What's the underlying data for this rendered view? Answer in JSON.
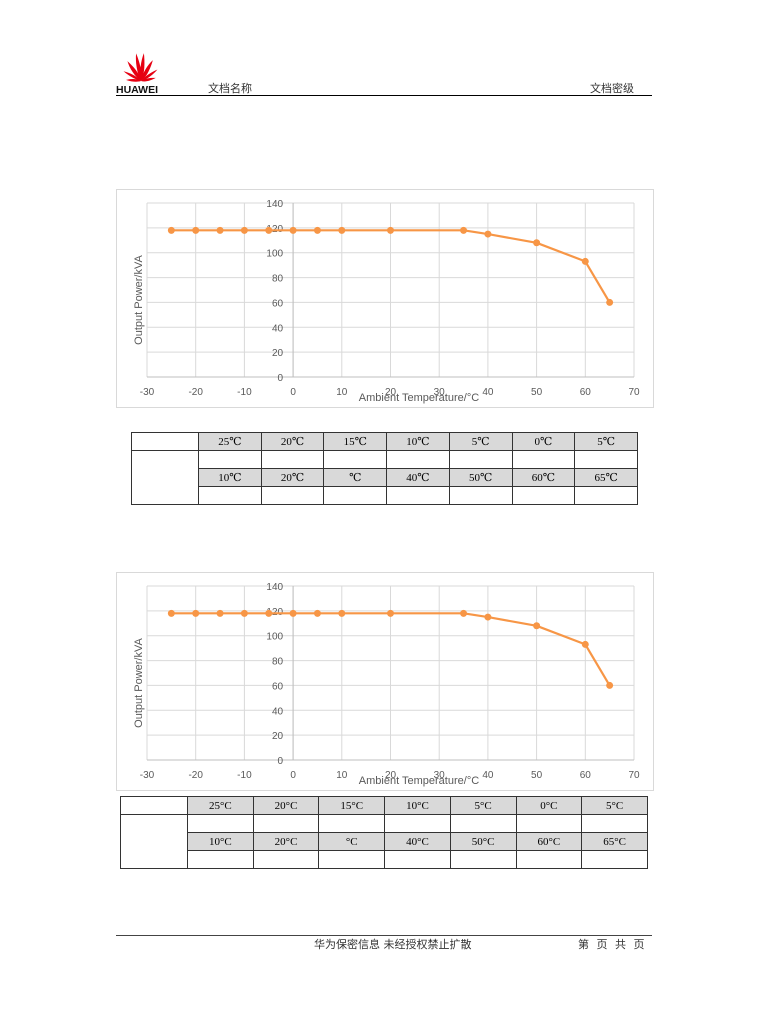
{
  "header": {
    "logo_text": "HUAWEI",
    "doc_name": "文档名称",
    "doc_level": "文档密级"
  },
  "footer": {
    "notice": "华为保密信息 未经授权禁止扩散",
    "page_info": "第 页 共 页"
  },
  "charts": [
    {
      "x_title": "Ambient Temperature/°C",
      "y_title": "Output Power/kVA",
      "x_ticks": [
        "-30",
        "-20",
        "-10",
        "0",
        "10",
        "20",
        "30",
        "40",
        "50",
        "60",
        "70"
      ],
      "y_ticks": [
        "0",
        "20",
        "40",
        "60",
        "80",
        "100",
        "120",
        "140"
      ],
      "line_color": "#F79646"
    },
    {
      "x_title": "Ambient Temperature/°C",
      "y_title": "Output Power/kVA",
      "x_ticks": [
        "-30",
        "-20",
        "-10",
        "0",
        "10",
        "20",
        "30",
        "40",
        "50",
        "60",
        "70"
      ],
      "y_ticks": [
        "0",
        "20",
        "40",
        "60",
        "80",
        "100",
        "120",
        "140"
      ],
      "line_color": "#F79646"
    }
  ],
  "tables": [
    {
      "row1": [
        "25℃",
        "20℃",
        "15℃",
        "10℃",
        "5℃",
        "0℃",
        "5℃"
      ],
      "row2": [
        "",
        "",
        "",
        "",
        "",
        "",
        ""
      ],
      "row3": [
        "10℃",
        "20℃",
        "℃",
        "40℃",
        "50℃",
        "60℃",
        "65℃"
      ],
      "row4": [
        "",
        "",
        "",
        "",
        "",
        "",
        ""
      ]
    },
    {
      "row1": [
        "25°C",
        "20°C",
        "15°C",
        "10°C",
        "5°C",
        "0°C",
        "5°C"
      ],
      "row2": [
        "",
        "",
        "",
        "",
        "",
        "",
        ""
      ],
      "row3": [
        "10°C",
        "20°C",
        "°C",
        "40°C",
        "50°C",
        "60°C",
        "65°C"
      ],
      "row4": [
        "",
        "",
        "",
        "",
        "",
        "",
        ""
      ]
    }
  ],
  "chart_data": [
    {
      "type": "line",
      "title": "",
      "xlabel": "Ambient Temperature/°C",
      "ylabel": "Output Power/kVA",
      "xlim": [
        -30,
        70
      ],
      "ylim": [
        0,
        140
      ],
      "grid": true,
      "legend": "none",
      "x": [
        -25,
        -20,
        -15,
        -10,
        -5,
        0,
        5,
        10,
        20,
        35,
        40,
        50,
        60,
        65
      ],
      "series": [
        {
          "name": "Output Power",
          "values": [
            118,
            118,
            118,
            118,
            118,
            118,
            118,
            118,
            118,
            118,
            115,
            108,
            93,
            60
          ]
        }
      ]
    },
    {
      "type": "line",
      "title": "",
      "xlabel": "Ambient Temperature/°C",
      "ylabel": "Output Power/kVA",
      "xlim": [
        -30,
        70
      ],
      "ylim": [
        0,
        140
      ],
      "grid": true,
      "legend": "none",
      "x": [
        -25,
        -20,
        -15,
        -10,
        -5,
        0,
        5,
        10,
        20,
        35,
        40,
        50,
        60,
        65
      ],
      "series": [
        {
          "name": "Output Power",
          "values": [
            118,
            118,
            118,
            118,
            118,
            118,
            118,
            118,
            118,
            118,
            115,
            108,
            93,
            60
          ]
        }
      ]
    }
  ]
}
